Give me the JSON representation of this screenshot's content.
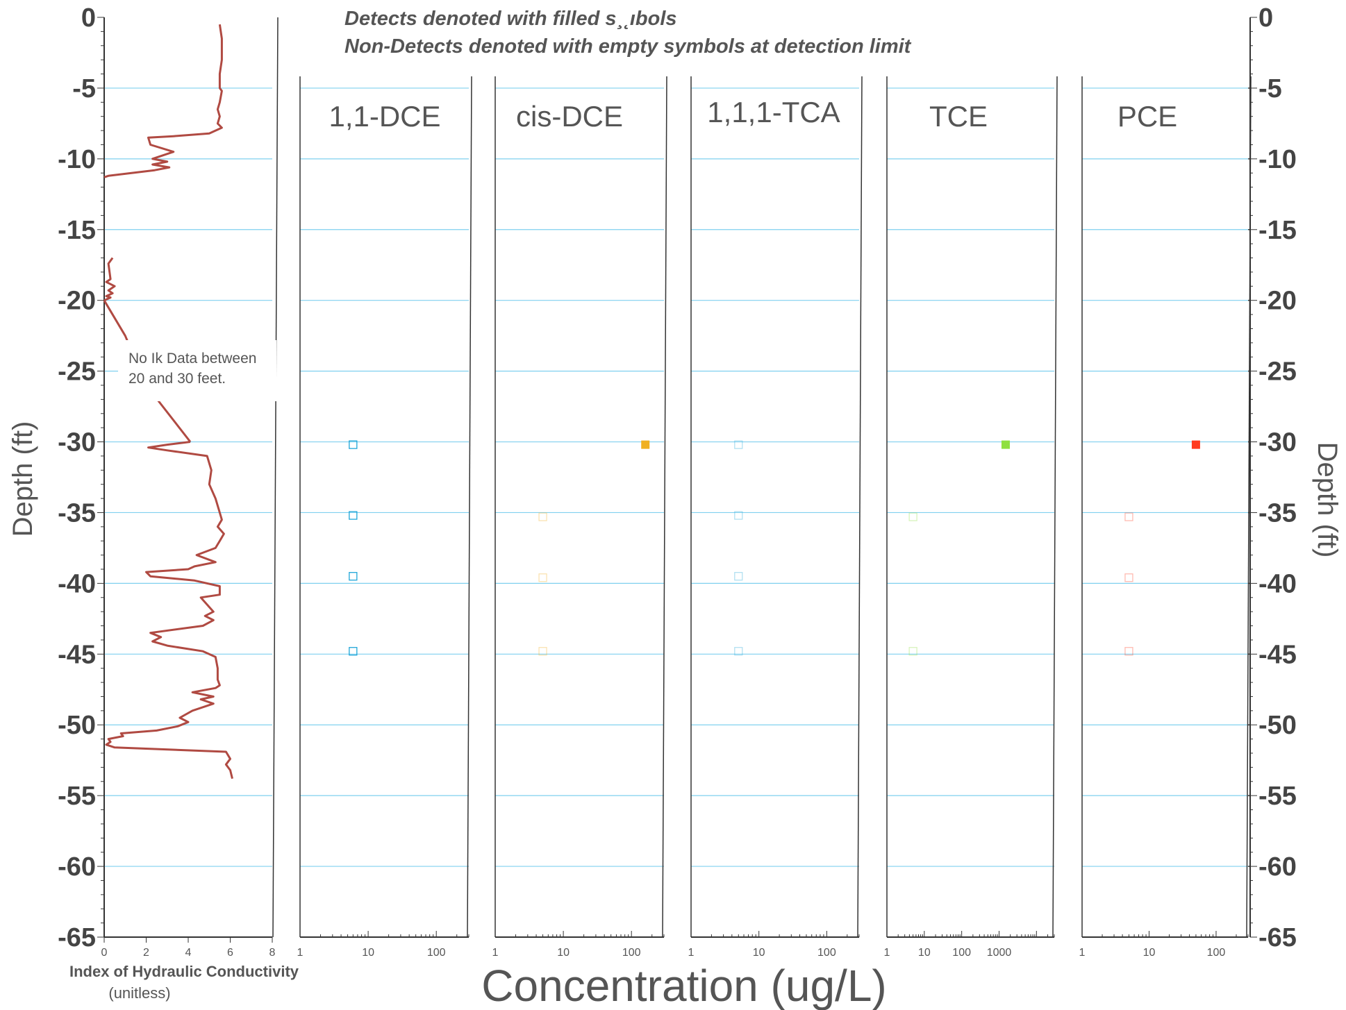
{
  "legend_note": [
    "Detects denoted with filled s¸˛ıbols",
    "Non-Detects denoted with empty symbols at detection limit"
  ],
  "colors": {
    "gridline": "#7fd0ef",
    "axis": "#333333",
    "ik_curve": "#b04a42",
    "dce11": "#1fa6d8",
    "cisdce": "#f0b020",
    "tca111": "#1fa6d8",
    "tce": "#8fe040",
    "pce": "#ff3b1f"
  },
  "chart_data": [
    {
      "type": "line",
      "id": "ik",
      "xlabel": "Index of Hydraulic Conductivity",
      "xlabel_units": "(unitless)",
      "ylabel": "Depth (ft)",
      "ylim": [
        -65,
        0
      ],
      "xlim": [
        0,
        8
      ],
      "x_ticks": [
        "0",
        "2",
        "4",
        "6",
        "8"
      ],
      "y_ticks": [
        "0",
        "-5",
        "-10",
        "-15",
        "-20",
        "-25",
        "-30",
        "-35",
        "-40",
        "-45",
        "-50",
        "-55",
        "-60",
        "-65"
      ],
      "grid": true,
      "annotation": [
        "No Ik Data between",
        "20 and 30 feet."
      ],
      "series": [
        {
          "x": [
            5.5,
            5.6,
            5.6,
            5.5,
            5.5,
            5.6,
            5.5,
            5.4,
            5.5,
            5.4,
            5.6,
            5.3,
            5.0,
            3.3,
            2.1,
            2.2,
            3.3,
            2.3,
            3.0,
            2.3,
            3.1,
            2.4,
            0.2,
            0.0
          ],
          "y": [
            -0.5,
            -1.5,
            -3.0,
            -4.0,
            -5.0,
            -5.2,
            -6.0,
            -6.5,
            -7.0,
            -7.5,
            -7.8,
            -8.0,
            -8.2,
            -8.4,
            -8.5,
            -9.0,
            -9.5,
            -10.0,
            -10.2,
            -10.4,
            -10.6,
            -10.8,
            -11.2,
            -11.3
          ]
        },
        {
          "x": [
            0.4,
            0.2,
            0.3,
            0.1,
            0.5,
            0.2,
            0.4,
            0.1,
            0.3,
            0.0
          ],
          "y": [
            -17.0,
            -17.4,
            -18.5,
            -18.7,
            -19.0,
            -19.3,
            -19.5,
            -19.7,
            -19.8,
            -20.0
          ]
        },
        {
          "x": [
            0.0,
            1.0,
            2.0,
            4.1
          ],
          "y": [
            -20.0,
            -22.5,
            -26.0,
            -30.0
          ]
        },
        {
          "x": [
            4.1,
            3.0,
            2.1,
            3.0,
            4.9,
            5.1,
            5.0,
            5.3,
            5.5,
            5.6,
            5.4,
            5.7,
            5.5,
            5.3,
            4.4,
            5.3,
            4.3,
            4.0,
            2.0,
            2.2,
            4.3,
            5.5,
            5.5,
            4.6,
            4.9,
            5.2,
            4.8,
            5.2,
            4.7,
            2.2,
            2.7,
            2.3,
            3.0,
            4.7,
            5.3,
            5.4,
            5.4,
            5.5,
            5.3,
            4.2,
            5.2,
            4.6,
            5.2,
            4.2,
            3.6,
            4.0,
            3.5,
            2.5,
            0.8,
            0.9,
            0.2,
            0.3,
            0.1,
            0.5,
            5.8,
            6.0,
            5.8,
            6.0,
            6.1
          ],
          "y": [
            -30.0,
            -30.2,
            -30.4,
            -30.6,
            -31.0,
            -32.0,
            -33.0,
            -34.0,
            -35.0,
            -35.5,
            -36.0,
            -36.5,
            -37.0,
            -37.5,
            -38.0,
            -38.5,
            -38.8,
            -39.0,
            -39.2,
            -39.5,
            -39.8,
            -40.2,
            -40.8,
            -41.0,
            -41.5,
            -42.0,
            -42.3,
            -42.6,
            -43.0,
            -43.5,
            -43.8,
            -44.1,
            -44.4,
            -44.8,
            -45.2,
            -46.0,
            -46.8,
            -47.2,
            -47.4,
            -47.7,
            -48.0,
            -48.2,
            -48.5,
            -49.0,
            -49.5,
            -49.8,
            -50.1,
            -50.4,
            -50.6,
            -50.8,
            -51.0,
            -51.2,
            -51.4,
            -51.6,
            -51.9,
            -52.4,
            -52.8,
            -53.2,
            -53.8
          ]
        }
      ]
    },
    {
      "type": "scatter",
      "id": "dce11",
      "title": "1,1-DCE",
      "x_scale": "log",
      "xlim": [
        1,
        300
      ],
      "x_ticks": [
        "1",
        "10",
        "100"
      ],
      "x_tick_values": [
        1,
        10,
        100
      ],
      "series": [
        {
          "x": [
            6,
            6,
            6,
            6
          ],
          "y": [
            -30.2,
            -35.2,
            -39.5,
            -44.8
          ],
          "filled": [
            false,
            false,
            false,
            false
          ]
        }
      ]
    },
    {
      "type": "scatter",
      "id": "cisdce",
      "title": "cis-DCE",
      "x_scale": "log",
      "xlim": [
        1,
        300
      ],
      "x_ticks": [
        "1",
        "10",
        "100"
      ],
      "x_tick_values": [
        1,
        10,
        100
      ],
      "series": [
        {
          "x": [
            160,
            5,
            5,
            5
          ],
          "y": [
            -30.2,
            -35.3,
            -39.6,
            -44.8
          ],
          "filled": [
            true,
            false,
            false,
            false
          ]
        }
      ]
    },
    {
      "type": "scatter",
      "id": "tca111",
      "title": "1,1,1-TCA",
      "x_scale": "log",
      "xlim": [
        1,
        300
      ],
      "x_ticks": [
        "1",
        "10",
        "100"
      ],
      "x_tick_values": [
        1,
        10,
        100
      ],
      "series": [
        {
          "x": [
            5,
            5,
            5,
            5
          ],
          "y": [
            -30.2,
            -35.2,
            -39.5,
            -44.8
          ],
          "filled": [
            false,
            false,
            false,
            false
          ]
        }
      ]
    },
    {
      "type": "scatter",
      "id": "tce",
      "title": "TCE",
      "x_scale": "log",
      "xlim": [
        1,
        30000
      ],
      "x_ticks": [
        "1",
        "10",
        "100",
        "1000"
      ],
      "x_tick_values": [
        1,
        10,
        100,
        1000
      ],
      "series": [
        {
          "x": [
            1500,
            5,
            5
          ],
          "y": [
            -30.2,
            -35.3,
            -44.8
          ],
          "filled": [
            true,
            false,
            false
          ]
        }
      ]
    },
    {
      "type": "scatter",
      "id": "pce",
      "title": "PCE",
      "x_scale": "log",
      "xlim": [
        1,
        300
      ],
      "x_ticks": [
        "1",
        "10",
        "100"
      ],
      "x_tick_values": [
        1,
        10,
        100
      ],
      "series": [
        {
          "x": [
            50,
            5,
            5,
            5
          ],
          "y": [
            -30.2,
            -35.3,
            -39.6,
            -44.8
          ],
          "filled": [
            true,
            false,
            false,
            false
          ]
        }
      ]
    }
  ],
  "shared_xlabel": "Concentration (ug/L)",
  "right_ylabel": "Depth (ft)"
}
